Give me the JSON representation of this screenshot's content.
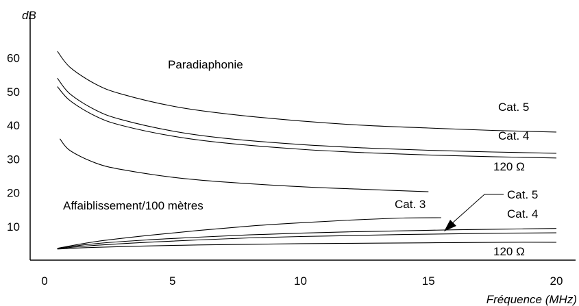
{
  "chart_data": {
    "type": "line",
    "ylabel": "dB",
    "xlabel": "Fréquence (MHz)",
    "xlim": [
      0,
      20
    ],
    "ylim": [
      0,
      65
    ],
    "x_ticks": [
      "0",
      "5",
      "10",
      "15",
      "20"
    ],
    "y_ticks": [
      "60",
      "50",
      "40",
      "30",
      "20",
      "10"
    ],
    "grid": false,
    "legend": "none",
    "groups": [
      {
        "label": "Paradiaphonie"
      },
      {
        "label": "Affaiblissement/100 mètres"
      }
    ],
    "series": [
      {
        "group": 0,
        "name": "Cat. 5",
        "x": [
          0.5,
          1,
          2,
          3,
          5,
          7,
          10,
          12.5,
          15,
          17.5,
          20
        ],
        "y": [
          62,
          57.2,
          52.2,
          49.3,
          45.7,
          43.5,
          41.3,
          40,
          39.2,
          38.5,
          38
        ]
      },
      {
        "group": 0,
        "name": "Cat. 4",
        "x": [
          0.5,
          1,
          2,
          3,
          5,
          7,
          10,
          12.5,
          15,
          17.5,
          20
        ],
        "y": [
          54,
          49.3,
          44.5,
          41.7,
          38.3,
          36.2,
          34.3,
          33.3,
          32.6,
          32.1,
          31.7
        ]
      },
      {
        "group": 0,
        "name": "120 Ω",
        "x": [
          0.5,
          1,
          2,
          3,
          5,
          7,
          10,
          12.5,
          15,
          17.5,
          20
        ],
        "y": [
          51.5,
          47.3,
          42.7,
          40,
          36.8,
          34.8,
          32.9,
          31.9,
          31.2,
          30.7,
          30.3
        ]
      },
      {
        "group": 0,
        "name": "Cat. 3",
        "x": [
          0.6,
          1,
          2,
          3,
          5,
          7,
          10,
          12.5,
          15
        ],
        "y": [
          36,
          32.5,
          28.8,
          26.9,
          24.6,
          23.2,
          21.8,
          21,
          20.3
        ]
      },
      {
        "group": 1,
        "name": "Cat. 3",
        "x": [
          0.5,
          2,
          4,
          6,
          8,
          10,
          12,
          14,
          15.5
        ],
        "y": [
          3.5,
          5.5,
          7.3,
          8.8,
          10.1,
          11.1,
          11.9,
          12.5,
          12.6
        ]
      },
      {
        "group": 1,
        "name": "Cat. 5",
        "x": [
          0.5,
          2,
          4,
          6,
          8,
          10,
          12,
          14,
          16,
          18,
          20
        ],
        "y": [
          3.5,
          4.9,
          6,
          6.8,
          7.5,
          8,
          8.4,
          8.7,
          9,
          9.2,
          9.4
        ]
      },
      {
        "group": 1,
        "name": "Cat. 4",
        "x": [
          0.5,
          2,
          4,
          6,
          8,
          10,
          12,
          14,
          16,
          18,
          20
        ],
        "y": [
          3.4,
          4.4,
          5.3,
          6,
          6.6,
          7,
          7.3,
          7.6,
          7.8,
          8,
          8.1
        ]
      },
      {
        "group": 1,
        "name": "120 Ω",
        "x": [
          0.5,
          2,
          4,
          6,
          8,
          10,
          12,
          14,
          16,
          18,
          20
        ],
        "y": [
          3.3,
          3.8,
          4.2,
          4.5,
          4.7,
          4.9,
          5,
          5.1,
          5.2,
          5.3,
          5.3
        ]
      }
    ]
  }
}
